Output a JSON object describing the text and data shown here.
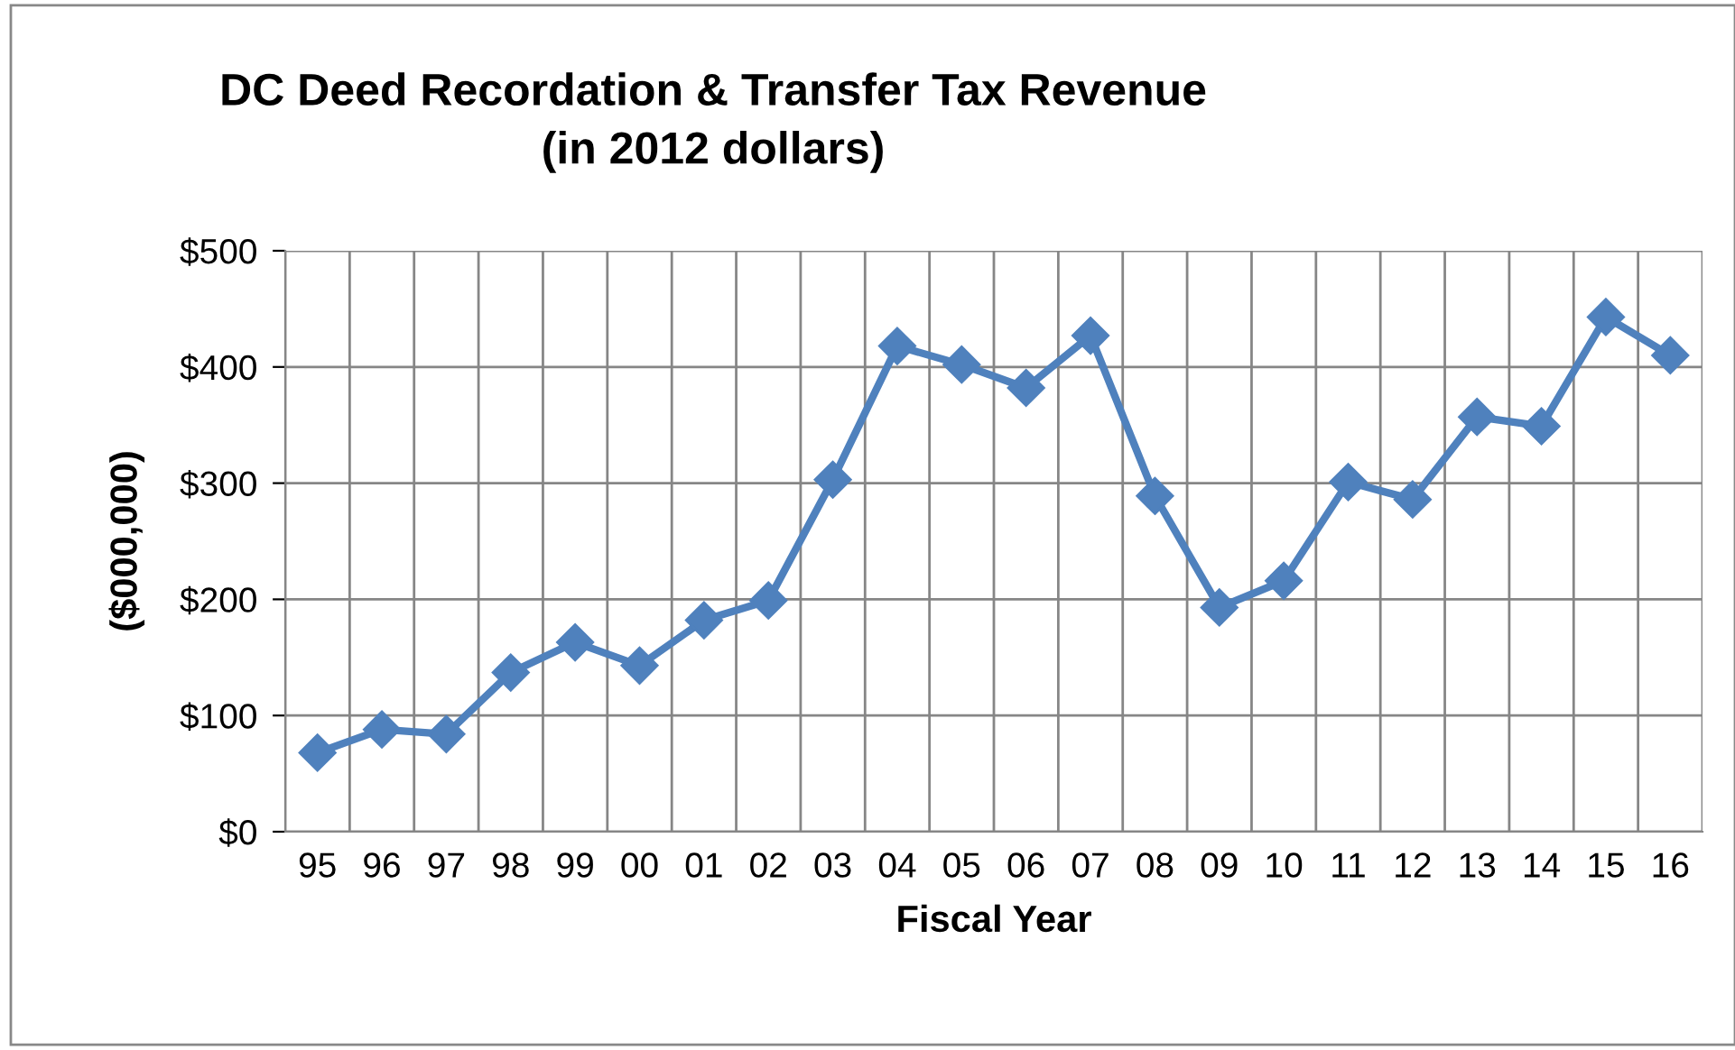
{
  "chart_data": {
    "type": "line",
    "title": "DC Deed Recordation & Transfer Tax Revenue\n(in 2012 dollars)",
    "xlabel": "Fiscal Year",
    "ylabel": "($000,000)",
    "categories": [
      "95",
      "96",
      "97",
      "98",
      "99",
      "00",
      "01",
      "02",
      "03",
      "04",
      "05",
      "06",
      "07",
      "08",
      "09",
      "10",
      "11",
      "12",
      "13",
      "14",
      "15",
      "16"
    ],
    "series": [
      {
        "color": "#4f81bd",
        "values": [
          68,
          88,
          84,
          137,
          163,
          143,
          182,
          199,
          303,
          418,
          402,
          382,
          427,
          289,
          193,
          216,
          301,
          286,
          357,
          349,
          443,
          410
        ]
      }
    ],
    "ylim": [
      0,
      500
    ],
    "yticks": [
      {
        "value": 0,
        "label": "$0"
      },
      {
        "value": 100,
        "label": "$100"
      },
      {
        "value": 200,
        "label": "$200"
      },
      {
        "value": 300,
        "label": "$300"
      },
      {
        "value": 400,
        "label": "$400"
      },
      {
        "value": 500,
        "label": "$500"
      }
    ],
    "grid": true,
    "marker": "diamond",
    "line_style": "solid"
  }
}
